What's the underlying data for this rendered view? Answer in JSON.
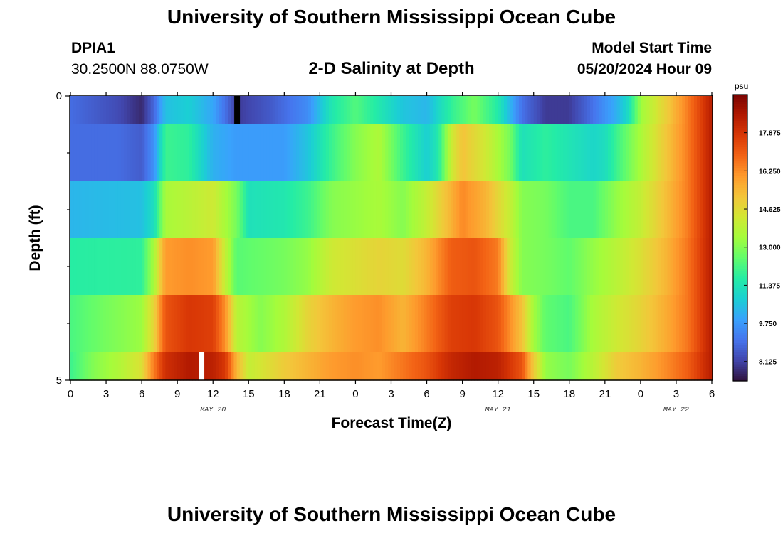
{
  "header": {
    "title": "University of Southern Mississippi Ocean Cube",
    "station": "DPIA1",
    "coords": "30.2500N  88.0750W",
    "subtitle": "2-D Salinity at Depth",
    "model_start_label": "Model Start Time",
    "model_start_value": "05/20/2024 Hour 09"
  },
  "footer": {
    "title": "University of Southern Mississippi Ocean Cube"
  },
  "chart_data": {
    "type": "heatmap",
    "title": "2-D Salinity at Depth",
    "xlabel": "Forecast Time(Z)",
    "ylabel": "Depth (ft)",
    "x_hours": [
      0,
      54
    ],
    "x_tick_labels": [
      "0",
      "3",
      "6",
      "9",
      "12",
      "15",
      "18",
      "21",
      "0",
      "3",
      "6",
      "9",
      "12",
      "15",
      "18",
      "21",
      "0",
      "3",
      "6"
    ],
    "date_labels": [
      {
        "hour": 12,
        "label": "MAY 20"
      },
      {
        "hour": 36,
        "label": "MAY 21"
      },
      {
        "hour": 51,
        "label": "MAY 22"
      }
    ],
    "y_range": [
      0,
      5
    ],
    "y_tick_labels": [
      {
        "value": 0,
        "label": "0"
      },
      {
        "value": 5,
        "label": "5"
      }
    ],
    "y_minor_ticks": [
      1,
      2,
      3,
      4
    ],
    "colorbar": {
      "unit": "psu",
      "min": 7.3,
      "max": 19.5,
      "labels": [
        "17.875",
        "16.250",
        "14.625",
        "13.000",
        "11.375",
        "9.750",
        "8.125"
      ],
      "colors": [
        "#30123b",
        "#4145ab",
        "#4675ed",
        "#39a2fc",
        "#1bcfd4",
        "#24eca6",
        "#61fc6c",
        "#a4fc3b",
        "#d1e834",
        "#f3c63a",
        "#fe9b2d",
        "#f36315",
        "#d93806",
        "#b11901",
        "#7a0402"
      ]
    },
    "layers": [
      {
        "depth_range": [
          0.0,
          0.5
        ],
        "knots": [
          [
            0,
            8.9
          ],
          [
            4,
            8.3
          ],
          [
            6,
            7.7
          ],
          [
            7,
            8.8
          ],
          [
            8,
            10.5
          ],
          [
            10,
            10.8
          ],
          [
            12,
            10.0
          ],
          [
            13,
            9.0
          ],
          [
            14,
            8.0
          ],
          [
            17,
            8.6
          ],
          [
            20,
            9.5
          ],
          [
            22,
            11.5
          ],
          [
            24,
            12.3
          ],
          [
            26,
            11.5
          ],
          [
            28,
            10.6
          ],
          [
            30,
            10.3
          ],
          [
            32,
            11.8
          ],
          [
            34,
            12.8
          ],
          [
            36,
            11.6
          ],
          [
            38,
            9.0
          ],
          [
            40,
            8.0
          ],
          [
            42,
            8.0
          ],
          [
            44,
            9.0
          ],
          [
            46,
            10.2
          ],
          [
            47,
            11.2
          ],
          [
            48,
            13.3
          ],
          [
            50,
            14.8
          ],
          [
            52,
            16.5
          ],
          [
            54,
            18.5
          ]
        ]
      },
      {
        "depth_range": [
          0.5,
          1.5
        ],
        "knots": [
          [
            0,
            8.9
          ],
          [
            4,
            8.9
          ],
          [
            6,
            8.6
          ],
          [
            7,
            9.6
          ],
          [
            8,
            12.0
          ],
          [
            10,
            11.8
          ],
          [
            12,
            10.2
          ],
          [
            14,
            9.8
          ],
          [
            18,
            9.8
          ],
          [
            20,
            10.6
          ],
          [
            22,
            12.0
          ],
          [
            24,
            13.0
          ],
          [
            26,
            13.6
          ],
          [
            28,
            12.0
          ],
          [
            30,
            10.8
          ],
          [
            31,
            11.6
          ],
          [
            32,
            14.0
          ],
          [
            33,
            15.2
          ],
          [
            35,
            14.2
          ],
          [
            37,
            12.8
          ],
          [
            38,
            11.3
          ],
          [
            40,
            11.8
          ],
          [
            42,
            11.4
          ],
          [
            44,
            11.0
          ],
          [
            45,
            11.2
          ],
          [
            46,
            12.0
          ],
          [
            48,
            13.5
          ],
          [
            50,
            15.0
          ],
          [
            52,
            16.5
          ],
          [
            54,
            18.5
          ]
        ]
      },
      {
        "depth_range": [
          1.5,
          2.5
        ],
        "knots": [
          [
            0,
            10.3
          ],
          [
            6,
            10.5
          ],
          [
            7,
            11.2
          ],
          [
            8,
            13.5
          ],
          [
            10,
            13.8
          ],
          [
            12,
            14.2
          ],
          [
            14,
            12.8
          ],
          [
            15,
            11.3
          ],
          [
            18,
            11.5
          ],
          [
            20,
            12.0
          ],
          [
            22,
            13.0
          ],
          [
            26,
            13.5
          ],
          [
            28,
            13.0
          ],
          [
            30,
            14.0
          ],
          [
            32,
            15.5
          ],
          [
            33,
            16.3
          ],
          [
            35,
            15.5
          ],
          [
            37,
            14.0
          ],
          [
            38,
            13.0
          ],
          [
            40,
            12.8
          ],
          [
            42,
            12.2
          ],
          [
            44,
            12.2
          ],
          [
            46,
            13.2
          ],
          [
            48,
            14.0
          ],
          [
            50,
            15.2
          ],
          [
            52,
            16.5
          ],
          [
            54,
            18.5
          ]
        ]
      },
      {
        "depth_range": [
          2.5,
          3.5
        ],
        "knots": [
          [
            0,
            11.7
          ],
          [
            6,
            11.8
          ],
          [
            7,
            13.5
          ],
          [
            8,
            16.0
          ],
          [
            10,
            16.2
          ],
          [
            12,
            16.0
          ],
          [
            13,
            14.0
          ],
          [
            14,
            12.4
          ],
          [
            18,
            12.8
          ],
          [
            20,
            13.2
          ],
          [
            22,
            14.2
          ],
          [
            26,
            14.8
          ],
          [
            28,
            14.6
          ],
          [
            30,
            15.5
          ],
          [
            32,
            17.0
          ],
          [
            34,
            17.2
          ],
          [
            36,
            16.5
          ],
          [
            37,
            14.2
          ],
          [
            38,
            13.0
          ],
          [
            40,
            12.8
          ],
          [
            42,
            12.5
          ],
          [
            44,
            13.2
          ],
          [
            46,
            13.8
          ],
          [
            48,
            14.5
          ],
          [
            50,
            15.4
          ],
          [
            52,
            16.6
          ],
          [
            54,
            18.5
          ]
        ]
      },
      {
        "depth_range": [
          3.5,
          4.5
        ],
        "knots": [
          [
            0,
            12.2
          ],
          [
            3,
            12.8
          ],
          [
            6,
            13.3
          ],
          [
            7,
            14.8
          ],
          [
            8,
            17.2
          ],
          [
            10,
            17.8
          ],
          [
            12,
            17.6
          ],
          [
            13,
            16.2
          ],
          [
            14,
            13.8
          ],
          [
            16,
            13.0
          ],
          [
            18,
            13.6
          ],
          [
            20,
            14.8
          ],
          [
            22,
            15.5
          ],
          [
            24,
            16.0
          ],
          [
            26,
            16.2
          ],
          [
            28,
            15.5
          ],
          [
            30,
            16.5
          ],
          [
            32,
            17.6
          ],
          [
            34,
            17.8
          ],
          [
            36,
            17.2
          ],
          [
            38,
            15.2
          ],
          [
            39,
            13.4
          ],
          [
            40,
            12.5
          ],
          [
            42,
            12.2
          ],
          [
            44,
            13.5
          ],
          [
            46,
            14.2
          ],
          [
            48,
            14.8
          ],
          [
            50,
            15.6
          ],
          [
            52,
            16.6
          ],
          [
            54,
            18.5
          ]
        ]
      },
      {
        "depth_range": [
          4.5,
          5.0
        ],
        "knots": [
          [
            0,
            12.0
          ],
          [
            2,
            13.0
          ],
          [
            4,
            13.6
          ],
          [
            6,
            14.5
          ],
          [
            7,
            16.5
          ],
          [
            8,
            18.0
          ],
          [
            10,
            18.6
          ],
          [
            12,
            18.4
          ],
          [
            13,
            17.8
          ],
          [
            14,
            15.5
          ],
          [
            15,
            14.0
          ],
          [
            18,
            15.0
          ],
          [
            20,
            15.5
          ],
          [
            22,
            16.0
          ],
          [
            24,
            16.2
          ],
          [
            26,
            16.0
          ],
          [
            28,
            16.6
          ],
          [
            30,
            17.2
          ],
          [
            32,
            18.2
          ],
          [
            34,
            18.6
          ],
          [
            36,
            18.4
          ],
          [
            38,
            17.2
          ],
          [
            39,
            15.0
          ],
          [
            40,
            13.2
          ],
          [
            42,
            12.8
          ],
          [
            44,
            13.8
          ],
          [
            46,
            15.0
          ],
          [
            48,
            15.5
          ],
          [
            50,
            16.2
          ],
          [
            52,
            17.0
          ],
          [
            54,
            18.5
          ]
        ]
      }
    ],
    "markers": [
      {
        "hour": 14,
        "depth_range": [
          0.0,
          0.5
        ],
        "color": "#000000"
      },
      {
        "hour": 11,
        "depth_range": [
          4.5,
          5.0
        ],
        "color": "#ffffff"
      }
    ]
  }
}
